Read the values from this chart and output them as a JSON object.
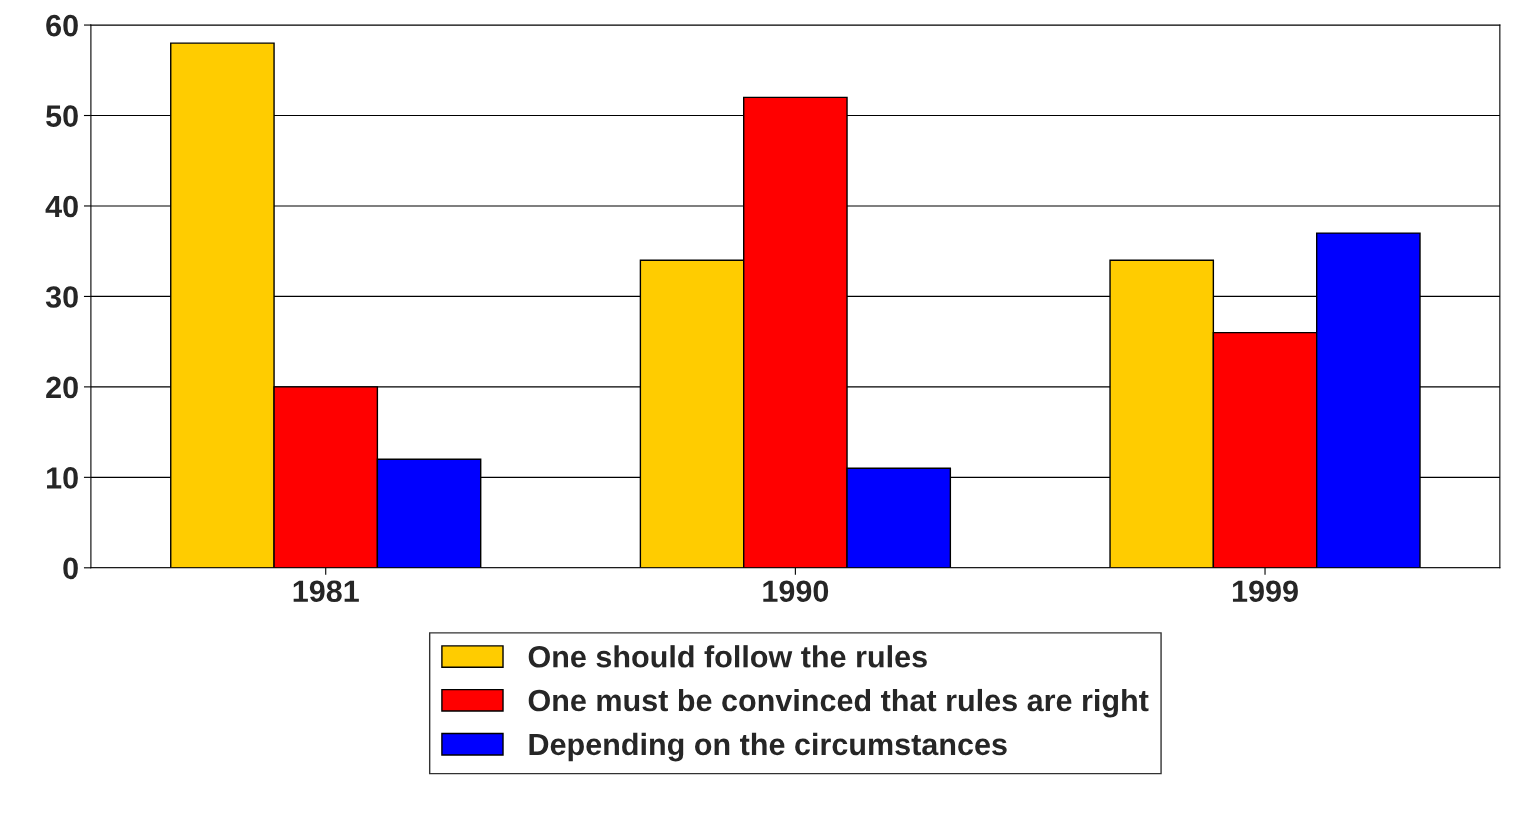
{
  "chart_data": {
    "type": "bar",
    "categories": [
      "1981",
      "1990",
      "1999"
    ],
    "series": [
      {
        "name": "One should follow the rules",
        "color": "#ffcc00",
        "values": [
          58,
          34,
          34
        ]
      },
      {
        "name": "One must be convinced that rules are right",
        "color": "#ff0000",
        "values": [
          20,
          52,
          26
        ]
      },
      {
        "name": "Depending on the circumstances",
        "color": "#0000ff",
        "values": [
          12,
          11,
          37
        ]
      }
    ],
    "ylim": [
      0,
      60
    ],
    "yticks": [
      0,
      10,
      20,
      30,
      40,
      50,
      60
    ],
    "grid": "y",
    "legend": "bottom"
  }
}
